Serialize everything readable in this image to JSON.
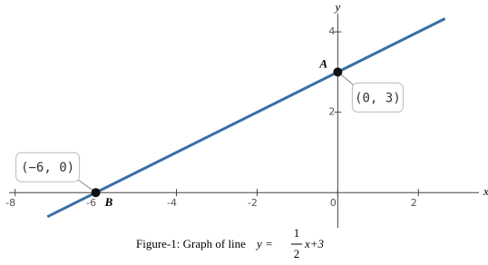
{
  "chart_data": {
    "type": "line",
    "x_label": "x",
    "y_label": "y",
    "xlim": [
      -8.15,
      3.5
    ],
    "ylim": [
      -0.65,
      4.68
    ],
    "xticks": [
      -8,
      -6,
      -4,
      -2,
      0,
      2
    ],
    "yticks": [
      2,
      4
    ],
    "series": [
      {
        "name": "line",
        "color": "#3a6ea5",
        "x": [
          -7.2,
          2.66
        ],
        "values": [
          -0.6,
          4.33
        ]
      },
      {
        "name": "points",
        "color": "#111111",
        "x": [
          0,
          -6
        ],
        "values": [
          3,
          0
        ],
        "point_labels": [
          "A",
          "B"
        ],
        "value_labels": [
          "(0, 3)",
          "(−6, 0)"
        ]
      }
    ],
    "caption": "Figure-1: Graph of line",
    "formula": {
      "lhs": "y =",
      "numerator": "1",
      "denominator": "2",
      "rhs": "x+3"
    }
  }
}
